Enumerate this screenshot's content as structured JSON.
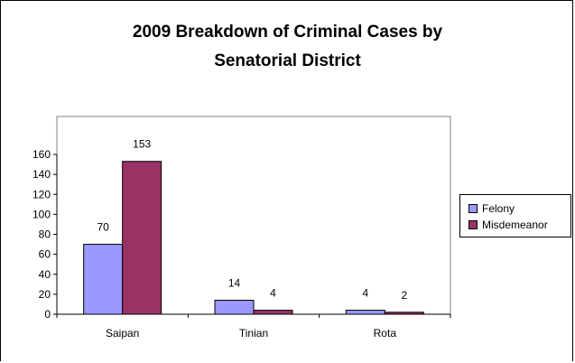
{
  "chart_data": {
    "type": "bar",
    "title_line1": "2009 Breakdown of Criminal Cases by",
    "title_line2": "Senatorial District",
    "categories": [
      "Saipan",
      "Tinian",
      "Rota"
    ],
    "series": [
      {
        "name": "Felony",
        "values": [
          70,
          14,
          4
        ],
        "color": "#9999FF"
      },
      {
        "name": "Misdemeanor",
        "values": [
          153,
          4,
          2
        ],
        "color": "#993366"
      }
    ],
    "data_labels": [
      [
        "70",
        "14",
        "4"
      ],
      [
        "153",
        "4",
        "2"
      ]
    ],
    "ylim": [
      0,
      160
    ],
    "yticks": [
      0,
      20,
      40,
      60,
      80,
      100,
      120,
      140,
      160
    ],
    "grid": false,
    "legend_position": "right",
    "xlabel": "",
    "ylabel": ""
  }
}
